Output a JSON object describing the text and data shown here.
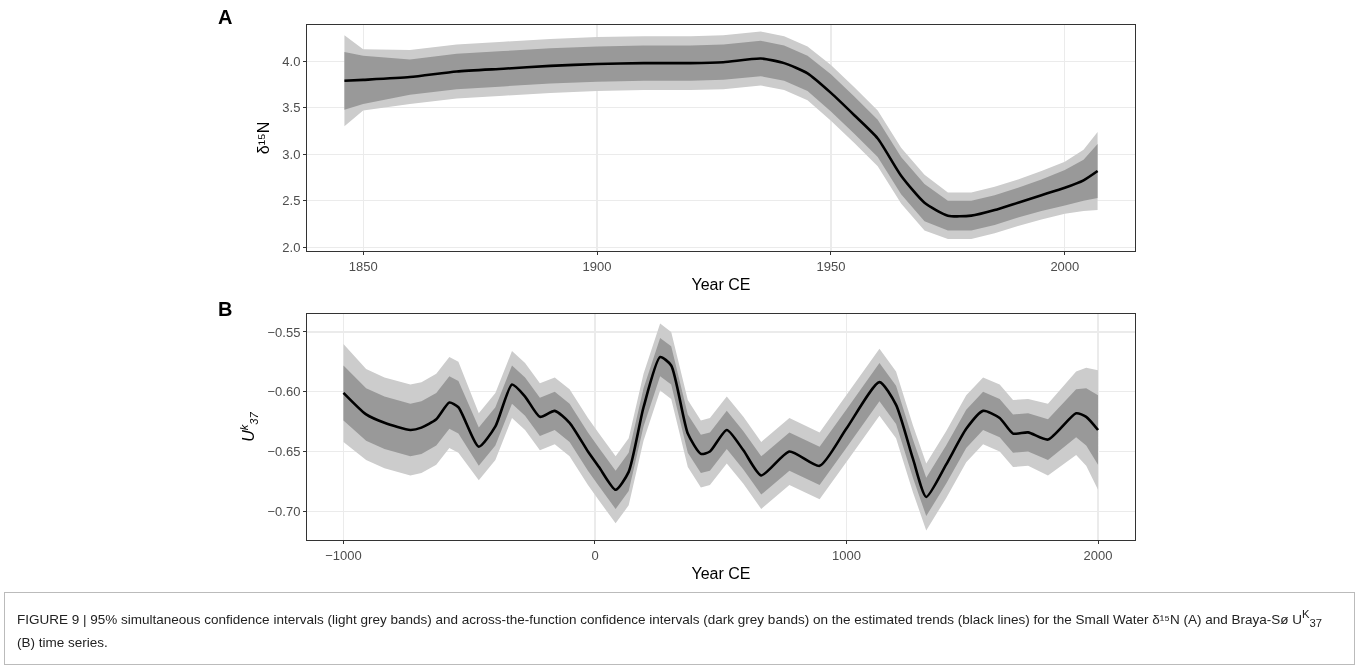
{
  "chart_data": [
    {
      "type": "line",
      "title": "A",
      "xlabel": "Year CE",
      "ylabel": "δ¹⁵N",
      "xlim": [
        1838,
        2015
      ],
      "ylim": [
        1.96,
        4.39
      ],
      "xticks": [
        1850,
        1900,
        1950,
        2000
      ],
      "yticks": [
        {
          "value": 2,
          "label": "2.0"
        },
        {
          "value": 2.5,
          "label": "2.5"
        },
        {
          "value": 3,
          "label": "3.0"
        },
        {
          "value": 3.5,
          "label": "3.5"
        },
        {
          "value": 4,
          "label": "4.0"
        }
      ],
      "grid": true,
      "x": [
        1846,
        1850,
        1860,
        1870,
        1880,
        1890,
        1900,
        1910,
        1920,
        1927,
        1935,
        1940,
        1945,
        1950,
        1955,
        1960,
        1965,
        1970,
        1975,
        1980,
        1985,
        1990,
        1995,
        2000,
        2004,
        2007
      ],
      "series": [
        {
          "color": "#cccccc",
          "values": [
            null,
            null,
            null,
            null,
            null,
            null,
            null,
            null,
            null,
            null,
            null,
            null,
            null,
            null,
            null,
            null,
            null,
            null,
            null,
            null,
            null,
            null,
            null,
            null,
            null,
            null
          ],
          "lower": [
            3.3,
            3.47,
            3.54,
            3.6,
            3.63,
            3.66,
            3.68,
            3.69,
            3.69,
            3.7,
            3.74,
            3.69,
            3.58,
            3.36,
            3.12,
            2.87,
            2.47,
            2.18,
            2.09,
            2.09,
            2.15,
            2.23,
            2.3,
            2.36,
            2.39,
            2.4
          ],
          "upper": [
            4.28,
            4.13,
            4.12,
            4.18,
            4.21,
            4.24,
            4.26,
            4.27,
            4.27,
            4.28,
            4.32,
            4.27,
            4.16,
            3.96,
            3.72,
            3.47,
            3.07,
            2.78,
            2.59,
            2.59,
            2.65,
            2.73,
            2.82,
            2.92,
            3.05,
            3.24
          ]
        },
        {
          "color": "#999999",
          "values": [
            null,
            null,
            null,
            null,
            null,
            null,
            null,
            null,
            null,
            null,
            null,
            null,
            null,
            null,
            null,
            null,
            null,
            null,
            null,
            null,
            null,
            null,
            null,
            null,
            null,
            null
          ],
          "lower": [
            3.48,
            3.54,
            3.64,
            3.7,
            3.73,
            3.76,
            3.78,
            3.79,
            3.79,
            3.8,
            3.84,
            3.79,
            3.68,
            3.46,
            3.22,
            2.97,
            2.57,
            2.28,
            2.18,
            2.18,
            2.24,
            2.32,
            2.39,
            2.45,
            2.5,
            2.53
          ],
          "upper": [
            4.1,
            4.06,
            4.02,
            4.08,
            4.11,
            4.14,
            4.16,
            4.17,
            4.17,
            4.18,
            4.22,
            4.17,
            4.06,
            3.86,
            3.62,
            3.37,
            2.97,
            2.68,
            2.5,
            2.5,
            2.56,
            2.64,
            2.73,
            2.83,
            2.94,
            3.11
          ]
        },
        {
          "color": "#000000",
          "values": [
            3.79,
            3.8,
            3.83,
            3.89,
            3.92,
            3.95,
            3.97,
            3.98,
            3.98,
            3.99,
            4.03,
            3.98,
            3.87,
            3.66,
            3.42,
            3.17,
            2.77,
            2.48,
            2.34,
            2.34,
            2.4,
            2.48,
            2.56,
            2.64,
            2.72,
            2.82
          ]
        }
      ]
    },
    {
      "type": "line",
      "title": "B",
      "xlabel": "Year CE",
      "ylabel": "U$^{k}$$_{37}$",
      "xlim": [
        -1145,
        2147
      ],
      "ylim": [
        -0.724,
        -0.535
      ],
      "xticks": [
        {
          "value": -1000,
          "label": "−1000"
        },
        0,
        1000,
        2000
      ],
      "yticks": [
        {
          "value": -0.7,
          "label": "−0.70"
        },
        {
          "value": -0.65,
          "label": "−0.65"
        },
        {
          "value": -0.6,
          "label": "−0.60"
        },
        {
          "value": -0.55,
          "label": "−0.55"
        }
      ],
      "grid": true,
      "x": [
        -1000,
        -910,
        -837,
        -734,
        -690,
        -631,
        -579,
        -543,
        -462,
        -396,
        -330,
        -278,
        -219,
        -160,
        -101,
        -28,
        16,
        82,
        134,
        193,
        259,
        303,
        369,
        421,
        457,
        524,
        590,
        661,
        773,
        893,
        999,
        1131,
        1197,
        1264,
        1317,
        1396,
        1476,
        1543,
        1609,
        1662,
        1722,
        1801,
        1913,
        1953,
        2000
      ],
      "series": [
        {
          "color": "#cccccc",
          "values": [
            null,
            null,
            null,
            null,
            null,
            null,
            null,
            null,
            null,
            null,
            null,
            null,
            null,
            null,
            null,
            null,
            null,
            null,
            null,
            null,
            null,
            null,
            null,
            null,
            null,
            null,
            null,
            null,
            null,
            null,
            null,
            null,
            null,
            null,
            null,
            null,
            null,
            null,
            null,
            null,
            null,
            null,
            null,
            null,
            null
          ],
          "lower": [
            -0.642,
            -0.657,
            -0.664,
            -0.67,
            -0.668,
            -0.661,
            -0.647,
            -0.651,
            -0.674,
            -0.657,
            -0.622,
            -0.632,
            -0.649,
            -0.644,
            -0.654,
            -0.678,
            -0.691,
            -0.71,
            -0.695,
            -0.641,
            -0.599,
            -0.606,
            -0.663,
            -0.68,
            -0.678,
            -0.66,
            -0.677,
            -0.698,
            -0.678,
            -0.69,
            -0.659,
            -0.62,
            -0.639,
            -0.684,
            -0.716,
            -0.689,
            -0.659,
            -0.644,
            -0.65,
            -0.663,
            -0.662,
            -0.67,
            -0.653,
            -0.662,
            -0.682
          ],
          "upper": [
            -0.56,
            -0.581,
            -0.588,
            -0.594,
            -0.592,
            -0.585,
            -0.571,
            -0.575,
            -0.618,
            -0.601,
            -0.566,
            -0.576,
            -0.593,
            -0.588,
            -0.598,
            -0.622,
            -0.635,
            -0.654,
            -0.639,
            -0.585,
            -0.543,
            -0.55,
            -0.607,
            -0.624,
            -0.622,
            -0.604,
            -0.621,
            -0.642,
            -0.622,
            -0.634,
            -0.603,
            -0.564,
            -0.583,
            -0.628,
            -0.66,
            -0.633,
            -0.603,
            -0.588,
            -0.594,
            -0.607,
            -0.606,
            -0.61,
            -0.583,
            -0.58,
            -0.582
          ]
        },
        {
          "color": "#999999",
          "values": [
            null,
            null,
            null,
            null,
            null,
            null,
            null,
            null,
            null,
            null,
            null,
            null,
            null,
            null,
            null,
            null,
            null,
            null,
            null,
            null,
            null,
            null,
            null,
            null,
            null,
            null,
            null,
            null,
            null,
            null,
            null,
            null,
            null,
            null,
            null,
            null,
            null,
            null,
            null,
            null,
            null,
            null,
            null,
            null,
            null
          ],
          "lower": [
            -0.624,
            -0.641,
            -0.648,
            -0.654,
            -0.652,
            -0.645,
            -0.631,
            -0.635,
            -0.662,
            -0.645,
            -0.61,
            -0.62,
            -0.637,
            -0.632,
            -0.642,
            -0.666,
            -0.679,
            -0.698,
            -0.683,
            -0.629,
            -0.587,
            -0.594,
            -0.651,
            -0.668,
            -0.666,
            -0.648,
            -0.665,
            -0.686,
            -0.666,
            -0.678,
            -0.647,
            -0.608,
            -0.627,
            -0.672,
            -0.704,
            -0.677,
            -0.647,
            -0.632,
            -0.638,
            -0.651,
            -0.65,
            -0.657,
            -0.638,
            -0.645,
            -0.661
          ],
          "upper": [
            -0.578,
            -0.597,
            -0.604,
            -0.61,
            -0.608,
            -0.601,
            -0.587,
            -0.591,
            -0.63,
            -0.613,
            -0.578,
            -0.588,
            -0.605,
            -0.6,
            -0.61,
            -0.634,
            -0.647,
            -0.666,
            -0.651,
            -0.597,
            -0.555,
            -0.562,
            -0.619,
            -0.636,
            -0.634,
            -0.616,
            -0.633,
            -0.654,
            -0.634,
            -0.646,
            -0.615,
            -0.576,
            -0.595,
            -0.64,
            -0.672,
            -0.645,
            -0.615,
            -0.6,
            -0.606,
            -0.619,
            -0.618,
            -0.623,
            -0.598,
            -0.597,
            -0.603
          ]
        },
        {
          "color": "#000000",
          "values": [
            -0.601,
            -0.619,
            -0.626,
            -0.632,
            -0.63,
            -0.623,
            -0.609,
            -0.613,
            -0.646,
            -0.629,
            -0.594,
            -0.604,
            -0.621,
            -0.616,
            -0.626,
            -0.65,
            -0.663,
            -0.682,
            -0.667,
            -0.613,
            -0.571,
            -0.578,
            -0.635,
            -0.652,
            -0.65,
            -0.632,
            -0.649,
            -0.67,
            -0.65,
            -0.662,
            -0.631,
            -0.592,
            -0.611,
            -0.656,
            -0.688,
            -0.661,
            -0.631,
            -0.616,
            -0.622,
            -0.635,
            -0.634,
            -0.64,
            -0.618,
            -0.621,
            -0.632
          ]
        }
      ],
      "annotations": [
        "FIGURE 9 | 95% simultaneous confidence intervals (light grey bands) and across-the-function confidence intervals (dark grey bands) on the estimated trends (black lines) for the Small Water δ¹⁵N (A) and Braya-Sø U$^{K}$$_{37}$ (B) time series."
      ]
    }
  ]
}
